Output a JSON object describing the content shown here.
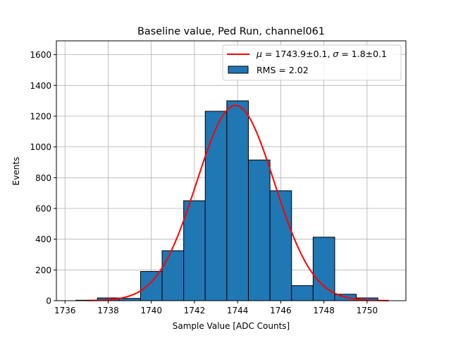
{
  "chart_data": {
    "type": "bar",
    "title": "Baseline value, Ped Run, channel061",
    "xlabel": "Sample Value [ADC Counts]",
    "ylabel": "Events",
    "xlim": [
      1735.6,
      1751.8
    ],
    "ylim": [
      0,
      1690
    ],
    "xticks": [
      1736,
      1738,
      1740,
      1742,
      1744,
      1746,
      1748,
      1750
    ],
    "yticks": [
      0,
      200,
      400,
      600,
      800,
      1000,
      1200,
      1400,
      1600
    ],
    "grid": true,
    "legend_position": "top-right",
    "histogram": {
      "name": "RMS = 2.02",
      "color": "#1f77b4",
      "bins": [
        {
          "x0": 1736.5,
          "x1": 1737.5,
          "count": 3
        },
        {
          "x0": 1737.5,
          "x1": 1738.5,
          "count": 18
        },
        {
          "x0": 1738.5,
          "x1": 1739.5,
          "count": 15
        },
        {
          "x0": 1739.5,
          "x1": 1740.5,
          "count": 190
        },
        {
          "x0": 1740.5,
          "x1": 1741.5,
          "count": 325
        },
        {
          "x0": 1741.5,
          "x1": 1742.5,
          "count": 650
        },
        {
          "x0": 1742.5,
          "x1": 1743.5,
          "count": 1232
        },
        {
          "x0": 1743.5,
          "x1": 1744.5,
          "count": 1300
        },
        {
          "x0": 1744.5,
          "x1": 1745.5,
          "count": 915
        },
        {
          "x0": 1745.5,
          "x1": 1746.5,
          "count": 715
        },
        {
          "x0": 1746.5,
          "x1": 1747.5,
          "count": 98
        },
        {
          "x0": 1747.5,
          "x1": 1748.5,
          "count": 413
        },
        {
          "x0": 1748.5,
          "x1": 1749.5,
          "count": 42
        },
        {
          "x0": 1749.5,
          "x1": 1750.5,
          "count": 18
        }
      ]
    },
    "fit": {
      "name_mu_value": "1743.9±0.1",
      "name_sigma_value": "1.8±0.1",
      "color": "#ff0000",
      "amplitude": 1270,
      "mu": 1743.9,
      "sigma": 1.8,
      "x_range": [
        1737.0,
        1751.0
      ]
    }
  }
}
